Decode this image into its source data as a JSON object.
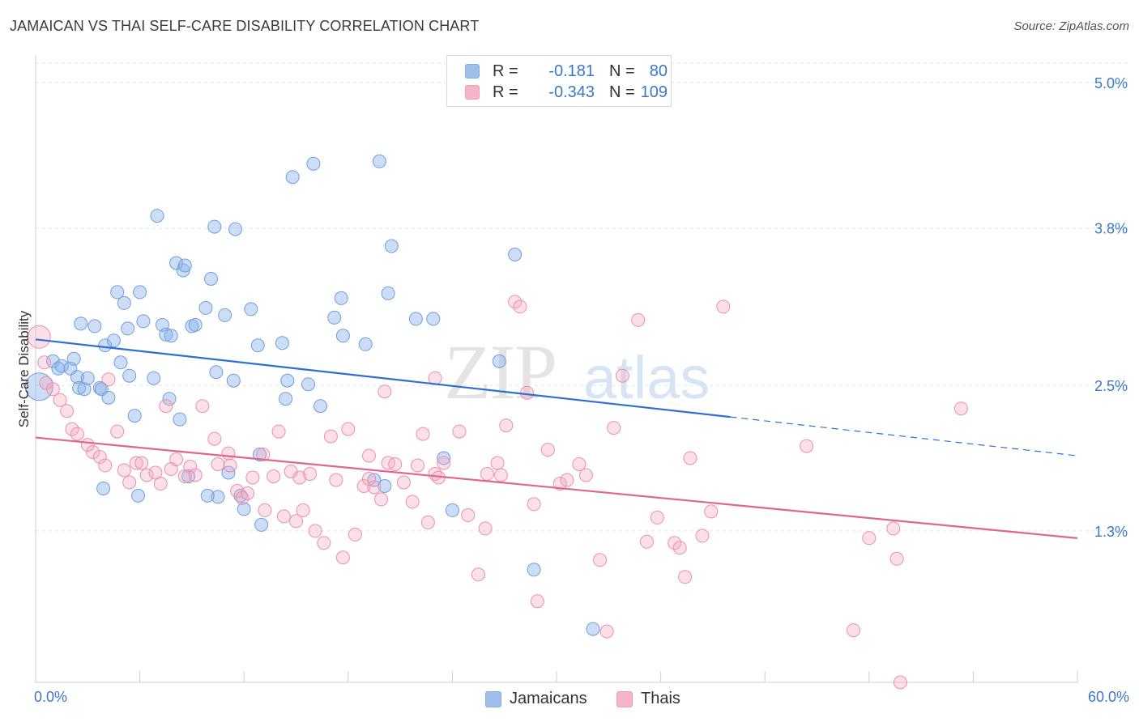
{
  "title": "JAMAICAN VS THAI SELF-CARE DISABILITY CORRELATION CHART",
  "source": "Source: ZipAtlas.com",
  "watermark": {
    "zip": "ZIP",
    "atlas": "atlas"
  },
  "legend": {
    "rows": [
      {
        "r_label": "R =",
        "r_value": "-0.181",
        "n_label": "N =",
        "n_value": "80",
        "color": "#8fb4e8"
      },
      {
        "r_label": "R =",
        "r_value": "-0.343",
        "n_label": "N =",
        "n_value": "109",
        "color": "#f4a7bf"
      }
    ]
  },
  "bottom_legend": {
    "jamaicans": "Jamaicans",
    "thais": "Thais"
  },
  "x_axis": {
    "min_label": "0.0%",
    "max_label": "60.0%"
  },
  "y_axis": {
    "label": "Self-Care Disability"
  },
  "chart_data": {
    "type": "scatter",
    "title": "JAMAICAN VS THAI SELF-CARE DISABILITY CORRELATION CHART",
    "xlabel": "",
    "ylabel": "Self-Care Disability",
    "xlim": [
      0,
      60
    ],
    "ylim": [
      0.05,
      5.2
    ],
    "y_ticks": [
      {
        "value": 1.3,
        "label": "1.3%"
      },
      {
        "value": 2.5,
        "label": "2.5%"
      },
      {
        "value": 3.8,
        "label": "3.8%"
      },
      {
        "value": 5.0,
        "label": "5.0%"
      }
    ],
    "grid": true,
    "legend_position": "top-center",
    "series": [
      {
        "name": "Jamaicans",
        "color": "#8fb4e8",
        "line_color": "#2f6fd1",
        "trend": {
          "x0": 0,
          "y0": 2.88,
          "x1": 40,
          "y1": 2.24,
          "dash_to_x": 60,
          "dash_to_y": 1.92
        },
        "points": [
          [
            0.2,
            2.49
          ],
          [
            1.0,
            2.7
          ],
          [
            1.3,
            2.64
          ],
          [
            1.5,
            2.66
          ],
          [
            2.0,
            2.64
          ],
          [
            2.2,
            2.72
          ],
          [
            2.4,
            2.57
          ],
          [
            2.5,
            2.48
          ],
          [
            2.6,
            3.01
          ],
          [
            2.8,
            2.47
          ],
          [
            3.0,
            2.56
          ],
          [
            3.4,
            2.99
          ],
          [
            3.7,
            2.48
          ],
          [
            3.8,
            2.47
          ],
          [
            4.0,
            2.83
          ],
          [
            4.2,
            2.4
          ],
          [
            4.5,
            2.87
          ],
          [
            4.7,
            3.27
          ],
          [
            4.9,
            2.69
          ],
          [
            5.1,
            3.18
          ],
          [
            5.3,
            2.97
          ],
          [
            5.4,
            2.58
          ],
          [
            5.7,
            2.25
          ],
          [
            6.0,
            3.27
          ],
          [
            6.2,
            3.03
          ],
          [
            6.8,
            2.56
          ],
          [
            7.0,
            3.9
          ],
          [
            7.3,
            3.0
          ],
          [
            7.5,
            2.92
          ],
          [
            7.7,
            2.39
          ],
          [
            7.8,
            2.91
          ],
          [
            8.1,
            3.51
          ],
          [
            8.3,
            2.22
          ],
          [
            8.5,
            3.45
          ],
          [
            8.6,
            3.49
          ],
          [
            9.0,
            2.99
          ],
          [
            9.2,
            3.0
          ],
          [
            9.8,
            3.14
          ],
          [
            10.1,
            3.38
          ],
          [
            10.3,
            3.81
          ],
          [
            10.4,
            2.61
          ],
          [
            10.9,
            3.08
          ],
          [
            11.4,
            2.54
          ],
          [
            11.5,
            3.79
          ],
          [
            11.1,
            1.78
          ],
          [
            11.8,
            1.59
          ],
          [
            12.0,
            1.48
          ],
          [
            12.4,
            3.13
          ],
          [
            12.8,
            2.83
          ],
          [
            12.9,
            1.93
          ],
          [
            13.0,
            1.35
          ],
          [
            14.2,
            2.85
          ],
          [
            14.4,
            2.39
          ],
          [
            14.5,
            2.54
          ],
          [
            14.8,
            4.22
          ],
          [
            16.0,
            4.33
          ],
          [
            15.7,
            2.51
          ],
          [
            16.4,
            2.33
          ],
          [
            17.2,
            3.06
          ],
          [
            17.6,
            3.22
          ],
          [
            17.7,
            2.91
          ],
          [
            19.0,
            2.84
          ],
          [
            19.5,
            1.72
          ],
          [
            19.8,
            4.35
          ],
          [
            20.3,
            3.26
          ],
          [
            20.1,
            1.67
          ],
          [
            20.5,
            3.65
          ],
          [
            21.9,
            3.05
          ],
          [
            22.9,
            3.05
          ],
          [
            23.5,
            1.9
          ],
          [
            24.0,
            1.47
          ],
          [
            26.7,
            2.7
          ],
          [
            27.6,
            3.58
          ],
          [
            28.7,
            0.98
          ],
          [
            32.1,
            0.49
          ],
          [
            10.5,
            1.58
          ],
          [
            9.9,
            1.59
          ],
          [
            5.9,
            1.59
          ],
          [
            3.9,
            1.65
          ],
          [
            8.8,
            1.75
          ]
        ]
      },
      {
        "name": "Thais",
        "color": "#f4a7bf",
        "line_color": "#e0658f",
        "trend": {
          "x0": 0,
          "y0": 2.07,
          "x1": 60,
          "y1": 1.24
        },
        "points": [
          [
            0.2,
            2.9
          ],
          [
            0.5,
            2.69
          ],
          [
            0.6,
            2.52
          ],
          [
            1.0,
            2.47
          ],
          [
            1.4,
            2.38
          ],
          [
            1.8,
            2.29
          ],
          [
            2.1,
            2.14
          ],
          [
            2.4,
            2.1
          ],
          [
            3.0,
            2.01
          ],
          [
            3.3,
            1.95
          ],
          [
            3.7,
            1.91
          ],
          [
            4.0,
            1.84
          ],
          [
            4.2,
            2.55
          ],
          [
            4.7,
            2.12
          ],
          [
            5.1,
            1.8
          ],
          [
            5.4,
            1.7
          ],
          [
            5.8,
            1.86
          ],
          [
            6.1,
            1.86
          ],
          [
            6.4,
            1.76
          ],
          [
            6.9,
            1.78
          ],
          [
            7.2,
            1.69
          ],
          [
            7.5,
            2.33
          ],
          [
            7.8,
            1.81
          ],
          [
            8.1,
            1.89
          ],
          [
            8.6,
            1.75
          ],
          [
            8.9,
            1.83
          ],
          [
            9.2,
            1.76
          ],
          [
            9.6,
            2.33
          ],
          [
            10.3,
            2.06
          ],
          [
            10.5,
            1.85
          ],
          [
            11.1,
            1.94
          ],
          [
            11.2,
            1.84
          ],
          [
            11.6,
            1.63
          ],
          [
            11.9,
            1.57
          ],
          [
            12.2,
            1.61
          ],
          [
            12.5,
            1.74
          ],
          [
            13.1,
            1.93
          ],
          [
            13.2,
            1.47
          ],
          [
            13.7,
            1.75
          ],
          [
            14.0,
            2.12
          ],
          [
            14.3,
            1.42
          ],
          [
            14.7,
            1.79
          ],
          [
            15.0,
            1.38
          ],
          [
            15.2,
            1.74
          ],
          [
            15.4,
            1.47
          ],
          [
            15.8,
            1.77
          ],
          [
            16.1,
            1.3
          ],
          [
            16.6,
            1.2
          ],
          [
            17.0,
            2.08
          ],
          [
            17.3,
            1.72
          ],
          [
            17.7,
            1.08
          ],
          [
            18.0,
            2.14
          ],
          [
            18.4,
            1.27
          ],
          [
            18.9,
            1.67
          ],
          [
            19.2,
            1.92
          ],
          [
            19.5,
            1.66
          ],
          [
            19.9,
            1.56
          ],
          [
            20.1,
            2.45
          ],
          [
            20.3,
            1.86
          ],
          [
            20.7,
            1.85
          ],
          [
            21.2,
            1.7
          ],
          [
            21.7,
            1.54
          ],
          [
            22.0,
            1.84
          ],
          [
            22.3,
            2.1
          ],
          [
            22.6,
            1.37
          ],
          [
            23.0,
            1.77
          ],
          [
            23.2,
            1.74
          ],
          [
            23.5,
            1.86
          ],
          [
            24.4,
            2.12
          ],
          [
            24.9,
            1.43
          ],
          [
            25.5,
            0.94
          ],
          [
            25.9,
            1.32
          ],
          [
            26.0,
            1.77
          ],
          [
            26.6,
            1.86
          ],
          [
            26.8,
            1.76
          ],
          [
            27.1,
            2.17
          ],
          [
            27.6,
            3.19
          ],
          [
            27.9,
            3.15
          ],
          [
            28.3,
            2.44
          ],
          [
            28.7,
            1.52
          ],
          [
            28.9,
            0.72
          ],
          [
            29.5,
            1.97
          ],
          [
            30.2,
            1.69
          ],
          [
            30.6,
            1.72
          ],
          [
            31.3,
            1.85
          ],
          [
            31.7,
            1.76
          ],
          [
            32.5,
            1.06
          ],
          [
            32.9,
            0.47
          ],
          [
            33.3,
            2.15
          ],
          [
            33.8,
            2.58
          ],
          [
            34.7,
            3.04
          ],
          [
            35.2,
            1.21
          ],
          [
            35.8,
            1.41
          ],
          [
            36.8,
            1.2
          ],
          [
            37.1,
            1.16
          ],
          [
            37.4,
            0.92
          ],
          [
            37.7,
            1.9
          ],
          [
            38.4,
            1.26
          ],
          [
            38.9,
            1.46
          ],
          [
            39.6,
            3.15
          ],
          [
            44.4,
            2.0
          ],
          [
            47.1,
            0.48
          ],
          [
            48.0,
            1.24
          ],
          [
            49.4,
            1.32
          ],
          [
            49.6,
            1.07
          ],
          [
            49.8,
            0.05
          ],
          [
            53.3,
            2.31
          ],
          [
            23.0,
            2.56
          ],
          [
            19.2,
            1.73
          ]
        ]
      }
    ]
  }
}
